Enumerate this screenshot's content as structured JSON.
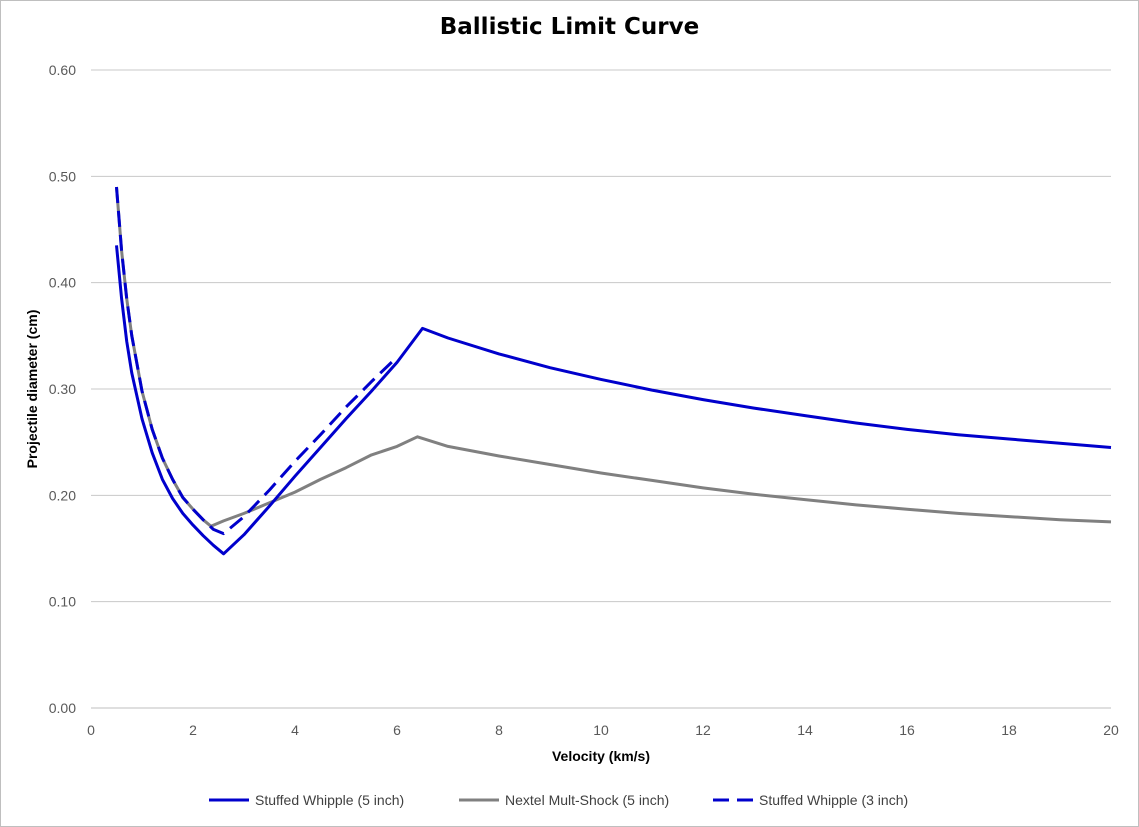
{
  "chart_data": {
    "type": "line",
    "title": "Ballistic Limit Curve",
    "xlabel": "Velocity (km/s)",
    "ylabel": "Projectile diameter (cm)",
    "xlim": [
      0,
      20
    ],
    "ylim": [
      0,
      0.6
    ],
    "x_ticks": [
      "0",
      "2",
      "4",
      "6",
      "8",
      "10",
      "12",
      "14",
      "16",
      "18",
      "20"
    ],
    "y_ticks": [
      "0.00",
      "0.10",
      "0.20",
      "0.30",
      "0.40",
      "0.50",
      "0.60"
    ],
    "grid": "horizontal",
    "legend_position": "bottom",
    "series": [
      {
        "name": "Stuffed Whipple (5 inch)",
        "color": "#0000cc",
        "dash": "solid",
        "points": [
          [
            0.5,
            0.435
          ],
          [
            0.6,
            0.385
          ],
          [
            0.7,
            0.345
          ],
          [
            0.8,
            0.315
          ],
          [
            1.0,
            0.272
          ],
          [
            1.2,
            0.24
          ],
          [
            1.4,
            0.215
          ],
          [
            1.6,
            0.197
          ],
          [
            1.8,
            0.183
          ],
          [
            2.0,
            0.172
          ],
          [
            2.2,
            0.162
          ],
          [
            2.4,
            0.153
          ],
          [
            2.6,
            0.145
          ],
          [
            3.0,
            0.163
          ],
          [
            3.5,
            0.19
          ],
          [
            4.0,
            0.218
          ],
          [
            4.5,
            0.245
          ],
          [
            5.0,
            0.272
          ],
          [
            5.5,
            0.298
          ],
          [
            6.0,
            0.325
          ],
          [
            6.5,
            0.357
          ],
          [
            7.0,
            0.348
          ],
          [
            8.0,
            0.333
          ],
          [
            9.0,
            0.32
          ],
          [
            10.0,
            0.309
          ],
          [
            11.0,
            0.299
          ],
          [
            12.0,
            0.29
          ],
          [
            13.0,
            0.282
          ],
          [
            14.0,
            0.275
          ],
          [
            15.0,
            0.268
          ],
          [
            16.0,
            0.262
          ],
          [
            17.0,
            0.257
          ],
          [
            18.0,
            0.253
          ],
          [
            19.0,
            0.249
          ],
          [
            20.0,
            0.245
          ]
        ]
      },
      {
        "name": "Nextel Mult-Shock (5 inch)",
        "color": "#808080",
        "dash": "solid",
        "points": [
          [
            0.5,
            0.49
          ],
          [
            0.6,
            0.43
          ],
          [
            0.7,
            0.385
          ],
          [
            0.8,
            0.35
          ],
          [
            1.0,
            0.298
          ],
          [
            1.2,
            0.262
          ],
          [
            1.4,
            0.235
          ],
          [
            1.6,
            0.215
          ],
          [
            1.8,
            0.198
          ],
          [
            2.0,
            0.187
          ],
          [
            2.2,
            0.177
          ],
          [
            2.35,
            0.171
          ],
          [
            2.6,
            0.176
          ],
          [
            3.0,
            0.183
          ],
          [
            3.5,
            0.193
          ],
          [
            4.0,
            0.203
          ],
          [
            4.5,
            0.215
          ],
          [
            5.0,
            0.226
          ],
          [
            5.5,
            0.238
          ],
          [
            6.0,
            0.246
          ],
          [
            6.4,
            0.255
          ],
          [
            7.0,
            0.246
          ],
          [
            8.0,
            0.237
          ],
          [
            9.0,
            0.229
          ],
          [
            10.0,
            0.221
          ],
          [
            11.0,
            0.214
          ],
          [
            12.0,
            0.207
          ],
          [
            13.0,
            0.201
          ],
          [
            14.0,
            0.196
          ],
          [
            15.0,
            0.191
          ],
          [
            16.0,
            0.187
          ],
          [
            17.0,
            0.183
          ],
          [
            18.0,
            0.18
          ],
          [
            19.0,
            0.177
          ],
          [
            20.0,
            0.175
          ]
        ]
      },
      {
        "name": "Stuffed Whipple (3 inch)",
        "color": "#0000cc",
        "dash": "dashed",
        "points": [
          [
            0.5,
            0.49
          ],
          [
            0.6,
            0.43
          ],
          [
            0.7,
            0.385
          ],
          [
            0.8,
            0.35
          ],
          [
            1.0,
            0.298
          ],
          [
            1.2,
            0.262
          ],
          [
            1.4,
            0.235
          ],
          [
            1.6,
            0.215
          ],
          [
            1.8,
            0.198
          ],
          [
            2.0,
            0.187
          ],
          [
            2.2,
            0.177
          ],
          [
            2.4,
            0.168
          ],
          [
            2.6,
            0.164
          ],
          [
            3.0,
            0.18
          ],
          [
            3.5,
            0.205
          ],
          [
            4.0,
            0.232
          ],
          [
            4.5,
            0.257
          ],
          [
            5.0,
            0.283
          ],
          [
            5.5,
            0.307
          ],
          [
            6.0,
            0.33
          ]
        ]
      }
    ]
  }
}
